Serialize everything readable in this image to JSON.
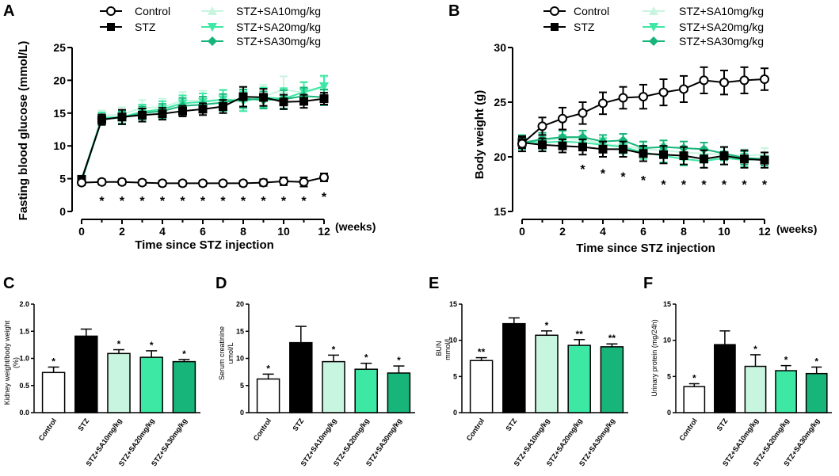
{
  "colors": {
    "control": "#000000",
    "stz": "#000000",
    "sa10": "#c8f5e0",
    "sa20": "#3ce8a4",
    "sa30": "#18b57a",
    "axis": "#000000"
  },
  "legend": {
    "control": "Control",
    "stz": "STZ",
    "sa10": "STZ+SA10mg/kg",
    "sa20": "STZ+SA20mg/kg",
    "sa30": "STZ+SA30mg/kg"
  },
  "weeks_unit": "(weeks)",
  "chart_data": [
    {
      "panel": "A",
      "type": "line",
      "ylabel": "Fasting blood glucose (mmol/L)",
      "xlabel": "Time since STZ injection",
      "x": [
        0,
        1,
        2,
        3,
        4,
        5,
        6,
        7,
        8,
        9,
        10,
        11,
        12
      ],
      "xticks": [
        "0",
        "2",
        "4",
        "6",
        "8",
        "10",
        "12"
      ],
      "xtick_values": [
        0,
        2,
        4,
        6,
        8,
        10,
        12
      ],
      "ylim": [
        0,
        25
      ],
      "yticks": [
        "0",
        "5",
        "10",
        "15",
        "20",
        "25"
      ],
      "ytick_values": [
        0,
        5,
        10,
        15,
        20,
        25
      ],
      "series": [
        {
          "key": "sa10",
          "name": "STZ+SA10mg/kg",
          "marker": "triangle-up",
          "values": [
            5.0,
            14.6,
            14.8,
            15.8,
            15.9,
            16.9,
            16.9,
            17.0,
            17.2,
            17.5,
            18.6,
            18.1,
            18.9
          ],
          "errors": [
            0.4,
            0.8,
            1.1,
            1.2,
            1.3,
            1.3,
            1.5,
            1.6,
            1.7,
            1.8,
            2.0,
            1.7,
            1.6
          ]
        },
        {
          "key": "sa20",
          "name": "STZ+SA20mg/kg",
          "marker": "triangle-down",
          "values": [
            4.7,
            14.3,
            14.4,
            15.2,
            15.6,
            16.5,
            16.7,
            17.1,
            16.8,
            17.4,
            17.2,
            18.2,
            19.1
          ],
          "errors": [
            0.4,
            0.8,
            1.0,
            1.1,
            1.2,
            1.2,
            1.3,
            1.4,
            1.5,
            1.5,
            1.6,
            1.5,
            1.6
          ]
        },
        {
          "key": "sa30",
          "name": "STZ+SA30mg/kg",
          "marker": "diamond",
          "values": [
            4.6,
            14.1,
            14.3,
            15.0,
            15.3,
            16.1,
            16.3,
            16.6,
            17.2,
            17.0,
            17.1,
            17.6,
            17.4
          ],
          "errors": [
            0.4,
            0.7,
            0.9,
            1.0,
            1.1,
            1.2,
            1.2,
            1.3,
            1.4,
            1.3,
            1.4,
            1.3,
            1.2
          ]
        },
        {
          "key": "stz",
          "name": "STZ",
          "marker": "square",
          "values": [
            4.9,
            14.0,
            14.4,
            14.7,
            14.9,
            15.3,
            15.6,
            16.0,
            17.5,
            17.4,
            16.7,
            16.8,
            17.2
          ],
          "errors": [
            0.4,
            0.8,
            1.1,
            1.0,
            0.9,
            0.8,
            0.9,
            1.0,
            1.5,
            1.3,
            1.1,
            1.0,
            0.9
          ]
        },
        {
          "key": "control",
          "name": "Control",
          "marker": "circle-open",
          "values": [
            4.4,
            4.5,
            4.5,
            4.4,
            4.3,
            4.3,
            4.3,
            4.3,
            4.3,
            4.4,
            4.6,
            4.5,
            5.2
          ],
          "errors": [
            0.4,
            0.4,
            0.4,
            0.4,
            0.4,
            0.4,
            0.4,
            0.4,
            0.4,
            0.5,
            0.6,
            0.7,
            0.6
          ]
        }
      ],
      "significance": {
        "x": [
          1,
          2,
          3,
          4,
          5,
          6,
          7,
          8,
          9,
          10,
          11,
          12
        ],
        "y": [
          2.2,
          2.2,
          2.2,
          2.2,
          2.2,
          2.2,
          2.2,
          2.2,
          2.2,
          2.2,
          2.2,
          2.8
        ],
        "label": "*"
      }
    },
    {
      "panel": "B",
      "type": "line",
      "ylabel": "Body weight (g)",
      "xlabel": "Time since STZ injection",
      "x": [
        0,
        1,
        2,
        3,
        4,
        5,
        6,
        7,
        8,
        9,
        10,
        11,
        12
      ],
      "xticks": [
        "0",
        "2",
        "4",
        "6",
        "8",
        "10",
        "12"
      ],
      "xtick_values": [
        0,
        2,
        4,
        6,
        8,
        10,
        12
      ],
      "ylim": [
        15,
        30
      ],
      "yticks": [
        "15",
        "20",
        "25",
        "30"
      ],
      "ytick_values": [
        15,
        20,
        25,
        30
      ],
      "series": [
        {
          "key": "sa10",
          "name": "STZ+SA10mg/kg",
          "marker": "triangle-up",
          "values": [
            21.3,
            21.5,
            21.7,
            21.6,
            21.2,
            21.0,
            20.7,
            20.6,
            20.4,
            20.3,
            20.2,
            20.1,
            20.2
          ],
          "errors": [
            0.6,
            0.6,
            0.6,
            0.6,
            0.6,
            0.6,
            0.6,
            0.6,
            0.6,
            0.6,
            0.6,
            0.6,
            0.6
          ]
        },
        {
          "key": "sa20",
          "name": "STZ+SA20mg/kg",
          "marker": "triangle-down",
          "values": [
            21.4,
            21.3,
            21.4,
            21.3,
            21.1,
            20.9,
            20.4,
            20.1,
            19.8,
            19.6,
            19.9,
            19.7,
            19.8
          ],
          "errors": [
            0.6,
            0.6,
            0.6,
            0.6,
            0.6,
            0.6,
            0.6,
            0.6,
            0.6,
            0.6,
            0.6,
            0.6,
            0.6
          ]
        },
        {
          "key": "sa30",
          "name": "STZ+SA30mg/kg",
          "marker": "diamond",
          "values": [
            21.3,
            21.6,
            21.8,
            21.8,
            21.4,
            21.5,
            20.8,
            20.9,
            20.8,
            20.7,
            20.3,
            19.9,
            19.8
          ],
          "errors": [
            0.6,
            0.6,
            0.6,
            0.6,
            0.6,
            0.6,
            0.6,
            0.6,
            0.6,
            0.6,
            0.6,
            0.6,
            0.6
          ]
        },
        {
          "key": "stz",
          "name": "STZ",
          "marker": "square",
          "values": [
            21.3,
            21.1,
            21.0,
            20.9,
            20.7,
            20.7,
            20.3,
            20.2,
            20.1,
            19.8,
            20.1,
            19.8,
            19.7
          ],
          "errors": [
            0.5,
            0.6,
            0.6,
            0.7,
            0.7,
            0.7,
            0.7,
            0.8,
            0.8,
            0.8,
            0.8,
            0.8,
            0.7
          ]
        },
        {
          "key": "control",
          "name": "Control",
          "marker": "circle-open",
          "values": [
            21.2,
            22.8,
            23.5,
            24.0,
            24.9,
            25.4,
            25.5,
            25.9,
            26.2,
            27.0,
            26.8,
            27.0,
            27.1
          ],
          "errors": [
            0.7,
            0.8,
            1.0,
            1.0,
            1.0,
            1.0,
            1.1,
            1.2,
            1.2,
            1.2,
            1.1,
            1.2,
            1.0
          ]
        }
      ],
      "significance": {
        "x": [
          3,
          4,
          5,
          6,
          7,
          8,
          9,
          10,
          11,
          12
        ],
        "y": [
          19.2,
          18.8,
          18.5,
          18.2,
          17.8,
          17.8,
          17.8,
          17.8,
          17.8,
          17.8
        ],
        "label": "*"
      }
    },
    {
      "panel": "C",
      "type": "bar",
      "ylabel": "Kidney weight/body weight (%)",
      "categories": [
        "Control",
        "STZ",
        "STZ+SA10mg/kg",
        "STZ+SA20mg/kg",
        "STZ+SA30mg/kg"
      ],
      "values": [
        0.74,
        1.41,
        1.09,
        1.02,
        0.94
      ],
      "errors": [
        0.1,
        0.13,
        0.07,
        0.12,
        0.04
      ],
      "labels": [
        "*",
        "",
        "*",
        "*",
        "*"
      ],
      "ylim": [
        0,
        2.0
      ],
      "yticks": [
        "0.0",
        "0.5",
        "1.0",
        "1.5",
        "2.0"
      ],
      "ytick_values": [
        0,
        0.5,
        1.0,
        1.5,
        2.0
      ]
    },
    {
      "panel": "D",
      "type": "bar",
      "ylabel": "Serum creatinine umol/L",
      "categories": [
        "Control",
        "STZ",
        "STZ+SA10mg/kg",
        "STZ+SA20mg/kg",
        "STZ+SA30mg/kg"
      ],
      "values": [
        6.2,
        12.9,
        9.4,
        8.0,
        7.3
      ],
      "errors": [
        0.9,
        3.0,
        1.2,
        1.1,
        1.3
      ],
      "labels": [
        "*",
        "",
        "*",
        "*",
        "*"
      ],
      "ylim": [
        0,
        20
      ],
      "yticks": [
        "0",
        "5",
        "10",
        "15",
        "20"
      ],
      "ytick_values": [
        0,
        5,
        10,
        15,
        20
      ]
    },
    {
      "panel": "E",
      "type": "bar",
      "ylabel": "BUN mmol/L",
      "categories": [
        "Control",
        "STZ",
        "STZ+SA10mg/kg",
        "STZ+SA20mg/kg",
        "STZ+SA30mg/kg"
      ],
      "values": [
        7.2,
        12.3,
        10.7,
        9.3,
        9.1
      ],
      "errors": [
        0.4,
        0.8,
        0.6,
        0.8,
        0.4
      ],
      "labels": [
        "**",
        "",
        "*",
        "**",
        "**"
      ],
      "ylim": [
        0,
        15
      ],
      "yticks": [
        "0",
        "5",
        "10",
        "15"
      ],
      "ytick_values": [
        0,
        5,
        10,
        15
      ]
    },
    {
      "panel": "F",
      "type": "bar",
      "ylabel": "Urinary protein (mg/24h)",
      "categories": [
        "Control",
        "STZ",
        "STZ+SA10mg/kg",
        "STZ+SA20mg/kg",
        "STZ+SA30mg/kg"
      ],
      "values": [
        3.6,
        9.4,
        6.4,
        5.8,
        5.4
      ],
      "errors": [
        0.4,
        1.9,
        1.6,
        0.7,
        0.9
      ],
      "labels": [
        "*",
        "",
        "*",
        "*",
        "*"
      ],
      "ylim": [
        0,
        15
      ],
      "yticks": [
        "0",
        "5",
        "10",
        "15"
      ],
      "ytick_values": [
        0,
        5,
        10,
        15
      ]
    }
  ]
}
